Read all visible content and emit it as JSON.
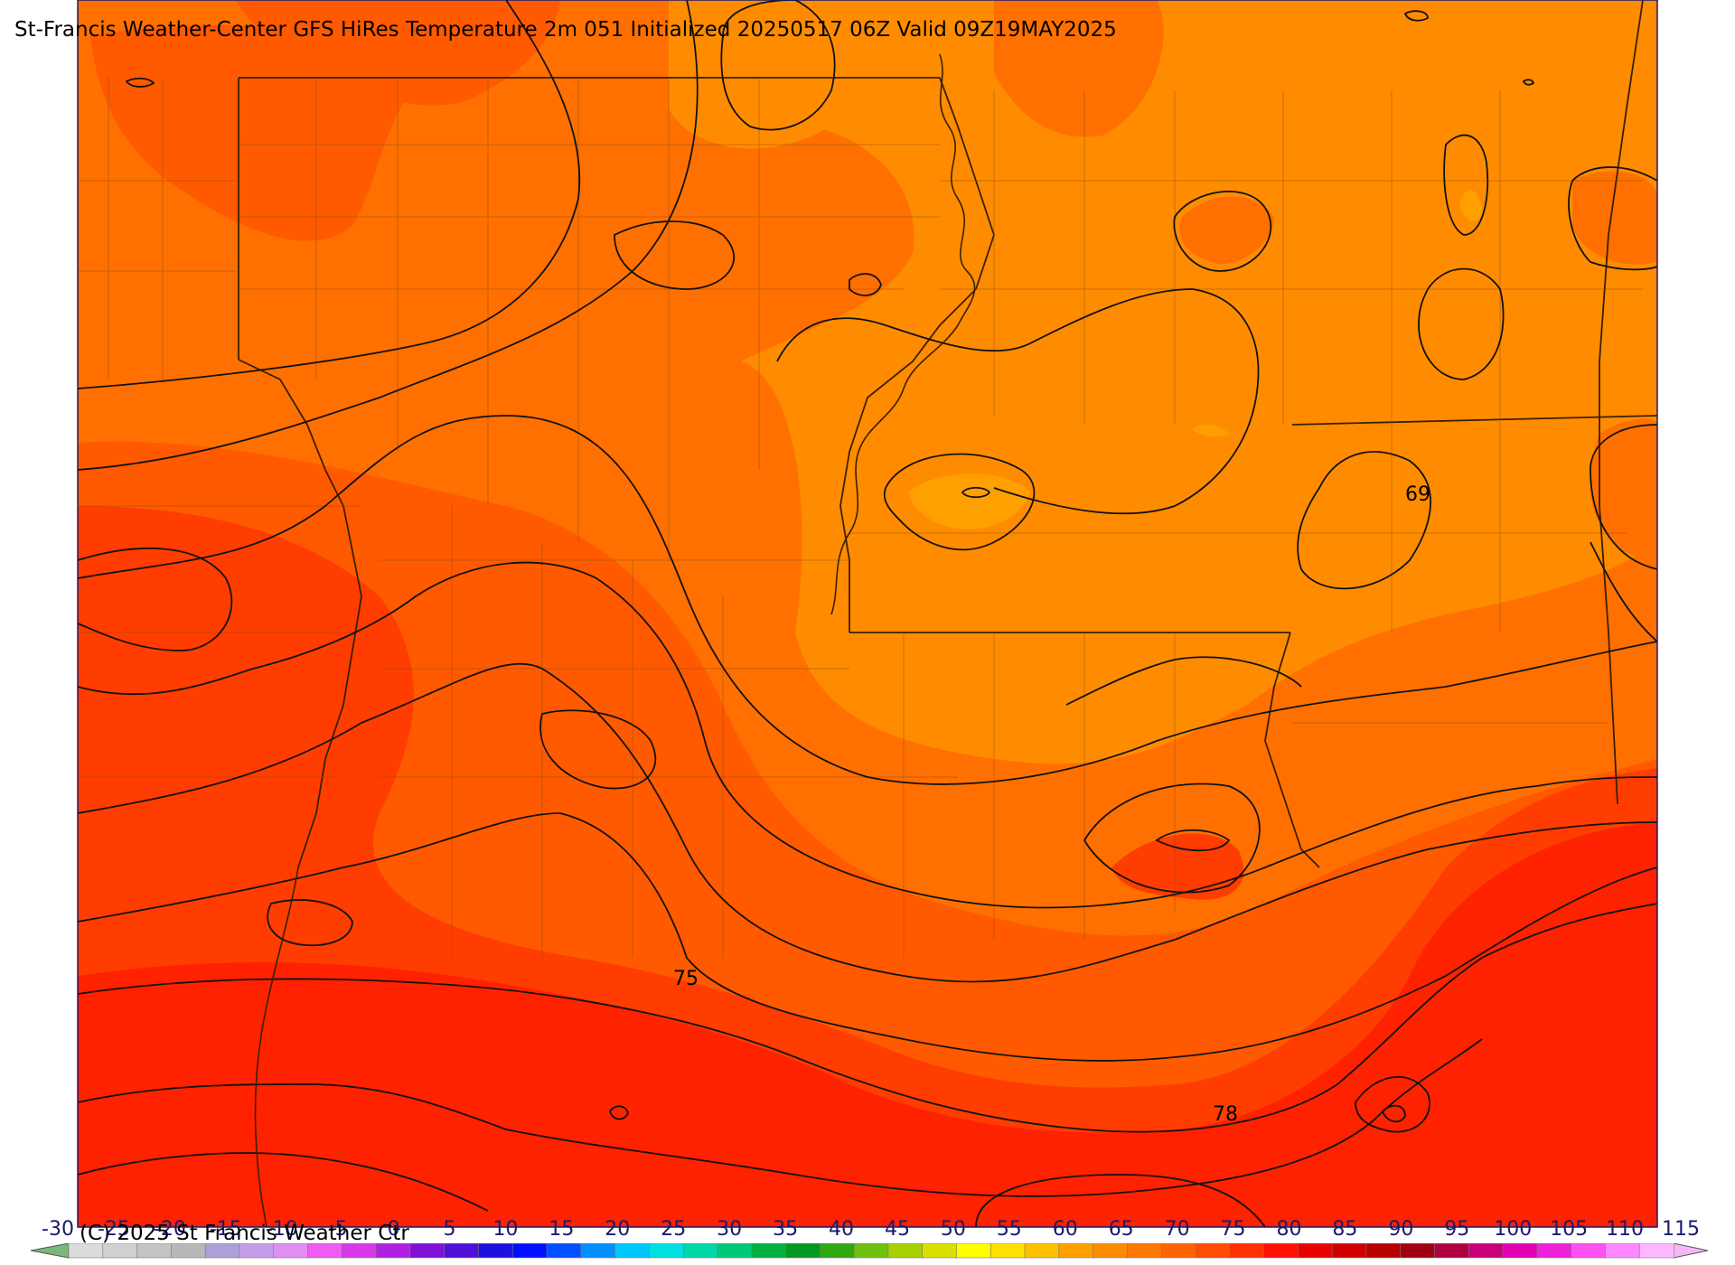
{
  "title": "St-Francis Weather-Center GFS HiRes Temperature 2m  051 Initialized 20250517 06Z Valid 09Z19MAY2025",
  "copyright": "(C) 2025 St Francis Weather Ctr",
  "colorbar": {
    "ticks": [
      "-30",
      "-25",
      "-20",
      "-15",
      "-10",
      "-5",
      "0",
      "5",
      "10",
      "15",
      "20",
      "25",
      "30",
      "35",
      "40",
      "45",
      "50",
      "55",
      "60",
      "65",
      "70",
      "75",
      "80",
      "85",
      "90",
      "95",
      "100",
      "105",
      "110",
      "115"
    ],
    "colors": [
      "#dcdcdc",
      "#d0d0d0",
      "#c4c4c4",
      "#b8b8b8",
      "#ad9fd8",
      "#c49de8",
      "#e08ef0",
      "#ee5cf0",
      "#d838e8",
      "#b020e0",
      "#8010d8",
      "#5010d8",
      "#2010e0",
      "#0010ff",
      "#0050ff",
      "#0090ff",
      "#00c8ff",
      "#00e0e0",
      "#00d8a8",
      "#00c878",
      "#00b040",
      "#009820",
      "#30a810",
      "#70c010",
      "#a8d000",
      "#d8e000",
      "#ffff00",
      "#ffe000",
      "#ffc000",
      "#ffa000",
      "#ff8c00",
      "#ff7800",
      "#ff6400",
      "#ff4c00",
      "#ff3000",
      "#ff1000",
      "#e80000",
      "#d00000",
      "#b80000",
      "#a00010",
      "#b00040",
      "#c8007a",
      "#e000b0",
      "#f020d8",
      "#ff50f0",
      "#ff88ff",
      "#ffb8ff"
    ]
  },
  "contour_labels": [
    {
      "text": "69",
      "name": "contour-label-69"
    },
    {
      "text": "75",
      "name": "contour-label-75"
    },
    {
      "text": "78",
      "name": "contour-label-78"
    }
  ],
  "fill_colors": {
    "very_warm": "#ff2200",
    "warm": "#ff3d00",
    "mild_warm": "#ff5a00",
    "mild": "#ff7000",
    "cool": "#ff8c00",
    "cooler": "#ffa000"
  }
}
